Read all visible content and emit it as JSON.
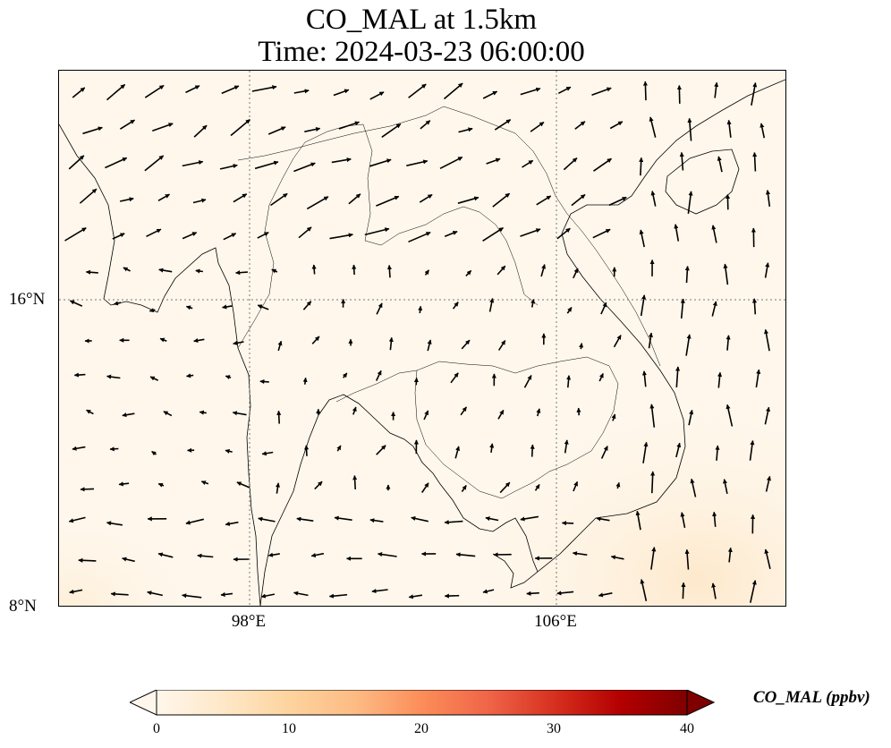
{
  "title": {
    "line1": "CO_MAL at 1.5km",
    "line2": "Time: 2024-03-23 06:00:00"
  },
  "map": {
    "projection": "lat-lon",
    "lon_range": [
      93,
      112
    ],
    "lat_range": [
      8,
      22
    ],
    "gridlines": "dotted",
    "lat_labels": [
      "16°N",
      "8°N"
    ],
    "lon_labels": [
      "98°E",
      "106°E"
    ],
    "field": "CO_MAL",
    "field_appearance": "near zero everywhere, faint peach tint in the southeast corner",
    "overlay": "wind vectors (black arrows)"
  },
  "colorbar": {
    "label": "CO_MAL (ppbv)",
    "ticks": [
      "0",
      "10",
      "20",
      "30",
      "40"
    ],
    "range": [
      0,
      40
    ],
    "extend": "both",
    "colormap": [
      "#fff7ec",
      "#fee8c8",
      "#fdd49e",
      "#fdbb84",
      "#fc8d59",
      "#ef6548",
      "#d7301f",
      "#b30000",
      "#7f0000"
    ]
  }
}
